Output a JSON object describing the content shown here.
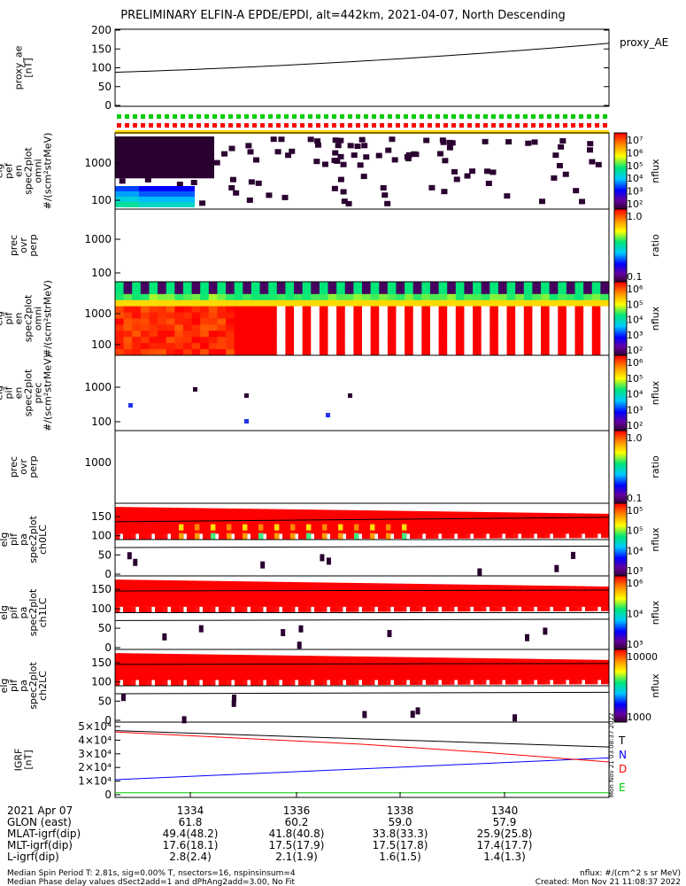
{
  "title": "PRELIMINARY ELFIN-A EPDE/EPDI, alt=442km, 2021-04-07, North Descending",
  "chart_data": [
    {
      "type": "line",
      "panel": "proxy_ae",
      "ylabel": "proxy_ae\n[nT]",
      "legend": "proxy_AE",
      "ylim": [
        0,
        200
      ],
      "yticks": [
        "0",
        "50",
        "100",
        "150",
        "200"
      ],
      "x": [
        0,
        0.25,
        0.5,
        0.75,
        1.0
      ],
      "values": [
        88,
        97,
        108,
        130,
        165
      ]
    },
    {
      "type": "heatmap",
      "panel": "elb_pef_en_spec2plot_omni",
      "ylabel": "elg\npef\nen\nspec2plot\nomni\n#/(scm²strMeV)",
      "yticks": [
        "100",
        "1000"
      ],
      "colorbar": {
        "label": "nflux",
        "ticks": [
          "10⁷",
          "10⁶",
          "10⁵",
          "10⁴",
          "10³",
          "10²"
        ]
      }
    },
    {
      "type": "heatmap",
      "panel": "elb_pef_en_spec2plot_prec_ovr_perp",
      "ylabel": "prec\novr\nperp",
      "yticks": [
        "100",
        "1000"
      ],
      "colorbar": {
        "label": "ratio",
        "ticks": [
          "1.0",
          "0.1"
        ]
      }
    },
    {
      "type": "heatmap",
      "panel": "elb_pif_en_spec2plot_omni",
      "ylabel": "elg\npif\nen\nspec2plot\nomni\n#/(scm²strMeV)",
      "yticks": [
        "100",
        "1000"
      ],
      "colorbar": {
        "label": "nflux",
        "ticks": [
          "10⁶",
          "10⁵",
          "10⁴",
          "10³",
          "10²"
        ]
      }
    },
    {
      "type": "heatmap",
      "panel": "elb_pif_en_spec2plot_prec",
      "ylabel": "elg\npif\nen\nspec2plot\nprec\n#/(scm²strMeV)",
      "yticks": [
        "100",
        "1000"
      ],
      "colorbar": {
        "label": "nflux",
        "ticks": [
          "10⁶",
          "10⁵",
          "10⁴",
          "10³",
          "10²"
        ]
      }
    },
    {
      "type": "heatmap",
      "panel": "elb_pif_prec_ovr_perp",
      "ylabel": "prec\novr\nperp",
      "yticks": [
        "1000"
      ],
      "colorbar": {
        "label": "ratio",
        "ticks": [
          "1.0",
          "0.1"
        ]
      }
    },
    {
      "type": "heatmap",
      "panel": "elb_pif_pa_spec2plot_ch0LC",
      "ylabel": "elg\npif\npa\nspec2plot\nch0LC",
      "yticks": [
        "0",
        "50",
        "100",
        "150"
      ],
      "colorbar": {
        "label": "nflux",
        "ticks": [
          "10⁵",
          "10⁵",
          "10⁴",
          "10³"
        ]
      }
    },
    {
      "type": "heatmap",
      "panel": "elb_pif_pa_spec2plot_ch1LC",
      "ylabel": "elg\npif\npa\nspec2plot\nch1LC",
      "yticks": [
        "0",
        "50",
        "100",
        "150"
      ],
      "colorbar": {
        "label": "nflux",
        "ticks": [
          "10⁶",
          "10⁴",
          "10³"
        ]
      }
    },
    {
      "type": "heatmap",
      "panel": "elb_pif_pa_spec2plot_ch2LC",
      "ylabel": "elg\npif\npa\nspec2plot\nch2LC",
      "yticks": [
        "0",
        "50",
        "100",
        "150"
      ],
      "colorbar": {
        "label": "nflux",
        "ticks": [
          "10000",
          "1000"
        ]
      }
    },
    {
      "type": "line",
      "panel": "IGRF",
      "ylabel": "IGRF\n[nT]",
      "ylim": [
        0,
        50000
      ],
      "yticks": [
        "0",
        "1×10⁴",
        "2×10⁴",
        "3×10⁴",
        "4×10⁴",
        "5×10⁴"
      ],
      "series": [
        {
          "name": "T",
          "color": "#000000",
          "values": [
            47000,
            44000,
            41000,
            38000,
            35000
          ]
        },
        {
          "name": "N",
          "color": "#0000ff",
          "values": [
            11000,
            15000,
            19000,
            23000,
            27000
          ]
        },
        {
          "name": "D",
          "color": "#ff0000",
          "values": [
            46000,
            41500,
            37000,
            31000,
            24000
          ]
        },
        {
          "name": "E",
          "color": "#00cc00",
          "values": [
            1500,
            1500,
            1500,
            1500,
            1500
          ]
        }
      ]
    }
  ],
  "time_axis": {
    "date": "2021 Apr 07",
    "ticks": [
      "1334",
      "1336",
      "1338",
      "1340"
    ],
    "rows": [
      {
        "label": "GLON (east)",
        "values": [
          "61.8",
          "60.2",
          "59.0",
          "57.9"
        ]
      },
      {
        "label": "MLAT-igrf(dip)",
        "values": [
          "49.4(48.2)",
          "41.8(40.8)",
          "33.8(33.3)",
          "25.9(25.8)"
        ]
      },
      {
        "label": "MLT-igrf(dip)",
        "values": [
          "17.6(18.1)",
          "17.5(17.9)",
          "17.5(17.8)",
          "17.4(17.7)"
        ]
      },
      {
        "label": "L-igrf(dip)",
        "values": [
          "2.8(2.4)",
          "2.1(1.9)",
          "1.6(1.5)",
          "1.4(1.3)"
        ]
      }
    ]
  },
  "footer": {
    "left1": "Median Spin Period T: 2.81s, sig=0.00% T, nsectors=16, nspinsinsum=4",
    "left2": "Median Phase delay values dSect2add=1 and dPhAng2add=3.00, No Fit",
    "right1": "nflux: #/(cm^2 s sr MeV)",
    "right2": "Created: Mon Nov 21 11:08:37 2022",
    "vertical": "Mon Nov 21 03:08:37 2022"
  }
}
